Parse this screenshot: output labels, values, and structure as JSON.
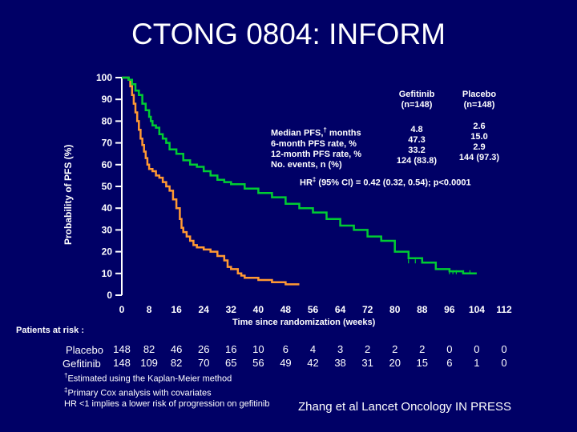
{
  "title": "CTONG 0804: INFORM",
  "chart_data": {
    "type": "line",
    "title": "CTONG 0804: INFORM",
    "xlabel": "Time since randomization (weeks)",
    "ylabel": "Probability of PFS (%)",
    "xlim": [
      0,
      112
    ],
    "ylim": [
      0,
      100
    ],
    "xticks": [
      "0",
      "8",
      "16",
      "24",
      "32",
      "40",
      "48",
      "56",
      "64",
      "72",
      "80",
      "88",
      "96",
      "104",
      "112"
    ],
    "yticks": [
      "0",
      "10",
      "20",
      "30",
      "40",
      "50",
      "60",
      "70",
      "80",
      "90",
      "100"
    ],
    "series": [
      {
        "name": "Placebo",
        "color": "#FF9933",
        "x": [
          0,
          2,
          2.5,
          3,
          3.5,
          4,
          4.5,
          5,
          5.5,
          6,
          6.5,
          7,
          7.5,
          8,
          9,
          10,
          11,
          12,
          13,
          14,
          15,
          16,
          17,
          17.5,
          18,
          19,
          20,
          21,
          22,
          24,
          26,
          28,
          30,
          31,
          32,
          33,
          34,
          35,
          36,
          38,
          40,
          42,
          44,
          46,
          48,
          50,
          52
        ],
        "y": [
          100,
          99,
          96,
          92,
          88,
          84,
          80,
          76,
          72,
          69,
          66,
          63,
          60,
          58,
          57,
          55,
          54,
          52,
          50,
          48,
          44,
          40,
          35,
          31,
          29,
          27,
          25,
          23,
          22,
          21,
          20,
          18,
          16,
          13,
          12,
          12,
          10,
          9,
          8,
          8,
          7,
          7,
          6,
          6,
          5,
          5,
          5
        ]
      },
      {
        "name": "Gefitinib",
        "color": "#00CC33",
        "x": [
          0,
          2,
          3,
          4,
          5,
          6,
          7,
          8,
          8.5,
          9,
          10,
          11,
          12,
          13,
          14,
          16,
          18,
          20,
          22,
          24,
          26,
          28,
          30,
          32,
          36,
          40,
          44,
          48,
          52,
          56,
          60,
          64,
          68,
          72,
          76,
          80,
          84,
          88,
          92,
          96,
          100,
          104
        ],
        "y": [
          100,
          99,
          97,
          94,
          92,
          88,
          85,
          82,
          80,
          78,
          77,
          74,
          72,
          70,
          67,
          65,
          62,
          60,
          59,
          57,
          55,
          53,
          52,
          51,
          49,
          47,
          45,
          42,
          40,
          38,
          35,
          32,
          30,
          27,
          25,
          20,
          17,
          15,
          12,
          11,
          10,
          10
        ]
      }
    ],
    "median_pfs_months": {
      "gefitinib": "4.8",
      "placebo": "2.6"
    },
    "pfs_6_month_pct": {
      "gefitinib": "47.3",
      "placebo": "15.0"
    },
    "pfs_12_month_pct": {
      "gefitinib": "33.2",
      "placebo": "2.9"
    },
    "events": {
      "gefitinib": "124 (83.8)",
      "placebo": "144 (97.3)"
    }
  },
  "legend": {
    "gef_name": "Gefitinib",
    "gef_n": "(n=148)",
    "pla_name": "Placebo",
    "pla_n": "(n=148)"
  },
  "stats_labels": {
    "median": "Median PFS,",
    "median_sup": "†",
    "median_unit": " months",
    "six": "6-month PFS rate, %",
    "twelve": "12-month PFS rate, %",
    "events": "No. events, n (%)"
  },
  "hazard": {
    "prefix": "HR",
    "sup": "‡",
    "text": " (95% CI) = 0.42 (0.32, 0.54); p<0.0001"
  },
  "risk": {
    "title": "Patients at risk :",
    "placebo_label": "Placebo",
    "gefitinib_label": "Gefitinib",
    "placebo": [
      "148",
      "82",
      "46",
      "26",
      "16",
      "10",
      "6",
      "4",
      "3",
      "2",
      "2",
      "2",
      "0",
      "0",
      "0"
    ],
    "gefitinib": [
      "148",
      "109",
      "82",
      "70",
      "65",
      "56",
      "49",
      "42",
      "38",
      "31",
      "20",
      "15",
      "6",
      "1",
      "0"
    ]
  },
  "footnotes": {
    "f1_sup": "†",
    "f1": "Estimated using the Kaplan-Meier method",
    "f2_sup": "‡",
    "f2": "Primary Cox analysis with covariates",
    "f3": "HR <1 implies a lower risk of progression on gefitinib"
  },
  "citation": "Zhang et al Lancet Oncology IN PRESS"
}
